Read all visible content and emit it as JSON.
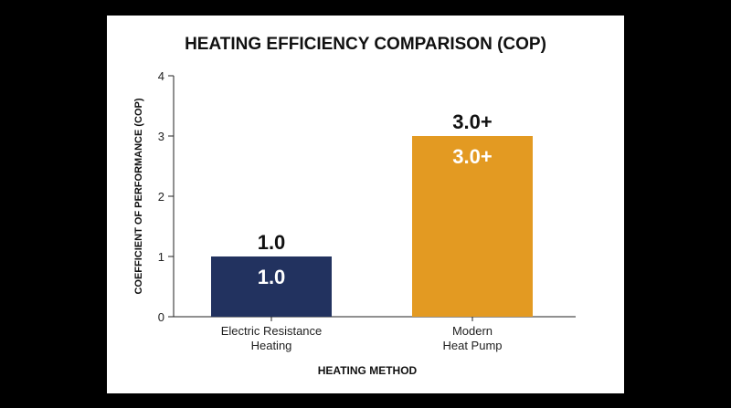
{
  "chart_data": {
    "type": "bar",
    "title": "HEATING EFFICIENCY COMPARISON (COP)",
    "xlabel": "HEATING METHOD",
    "ylabel": "COEFFICIENT OF PERFORMANCE (COP)",
    "ylim": [
      0,
      4
    ],
    "yticks": [
      0,
      1,
      2,
      3,
      4
    ],
    "grid": false,
    "categories": [
      [
        "Electric Resistance",
        "Heating"
      ],
      [
        "Modern",
        "Heat Pump"
      ]
    ],
    "values": [
      1.0,
      3.0
    ],
    "value_labels": [
      "1.0",
      "3.0+"
    ],
    "colors": [
      "#22325f",
      "#e39a22"
    ],
    "label_color_inside": "#ffffff",
    "label_color_outside": "#111111",
    "axis_color": "#222222"
  }
}
